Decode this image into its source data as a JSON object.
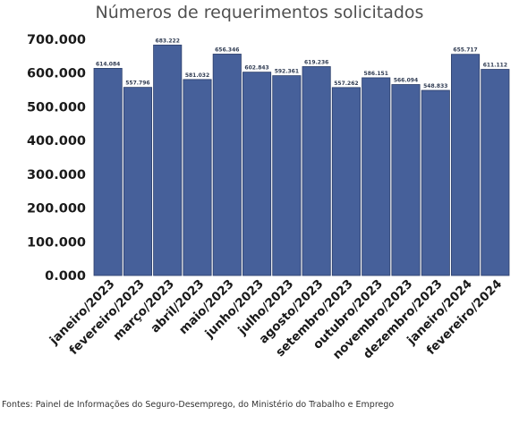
{
  "chart_data": {
    "type": "bar",
    "title": "Números de requerimentos solicitados",
    "xlabel": "",
    "ylabel": "",
    "categories": [
      "janeiro/2023",
      "fevereiro/2023",
      "março/2023",
      "abril/2023",
      "maio/2023",
      "junho/2023",
      "julho/2023",
      "agosto/2023",
      "setembro/2023",
      "outubro/2023",
      "novembro/2023",
      "dezembro/2023",
      "janeiro/2024",
      "fevereiro/2024"
    ],
    "values": [
      614084,
      557796,
      683222,
      581032,
      656346,
      602843,
      592361,
      619236,
      557262,
      586151,
      566094,
      548833,
      655717,
      611112
    ],
    "data_labels": [
      "614.084",
      "557.796",
      "683.222",
      "581.032",
      "656.346",
      "602.843",
      "592.361",
      "619.236",
      "557.262",
      "586.151",
      "566.094",
      "548.833",
      "655.717",
      "611.112"
    ],
    "yticks": [
      0,
      100000,
      200000,
      300000,
      400000,
      500000,
      600000,
      700000
    ],
    "ytick_labels": [
      "0.000",
      "100.000",
      "200.000",
      "300.000",
      "400.000",
      "500.000",
      "600.000",
      "700.000"
    ],
    "ylim": [
      0,
      700000
    ],
    "grid": false,
    "legend": "none",
    "bar_color": "#46609a",
    "bar_edge_color": "#2c3f6b"
  },
  "source": "Fontes:  Painel de Informações do Seguro-Desemprego, do Ministério do Trabalho e Emprego"
}
